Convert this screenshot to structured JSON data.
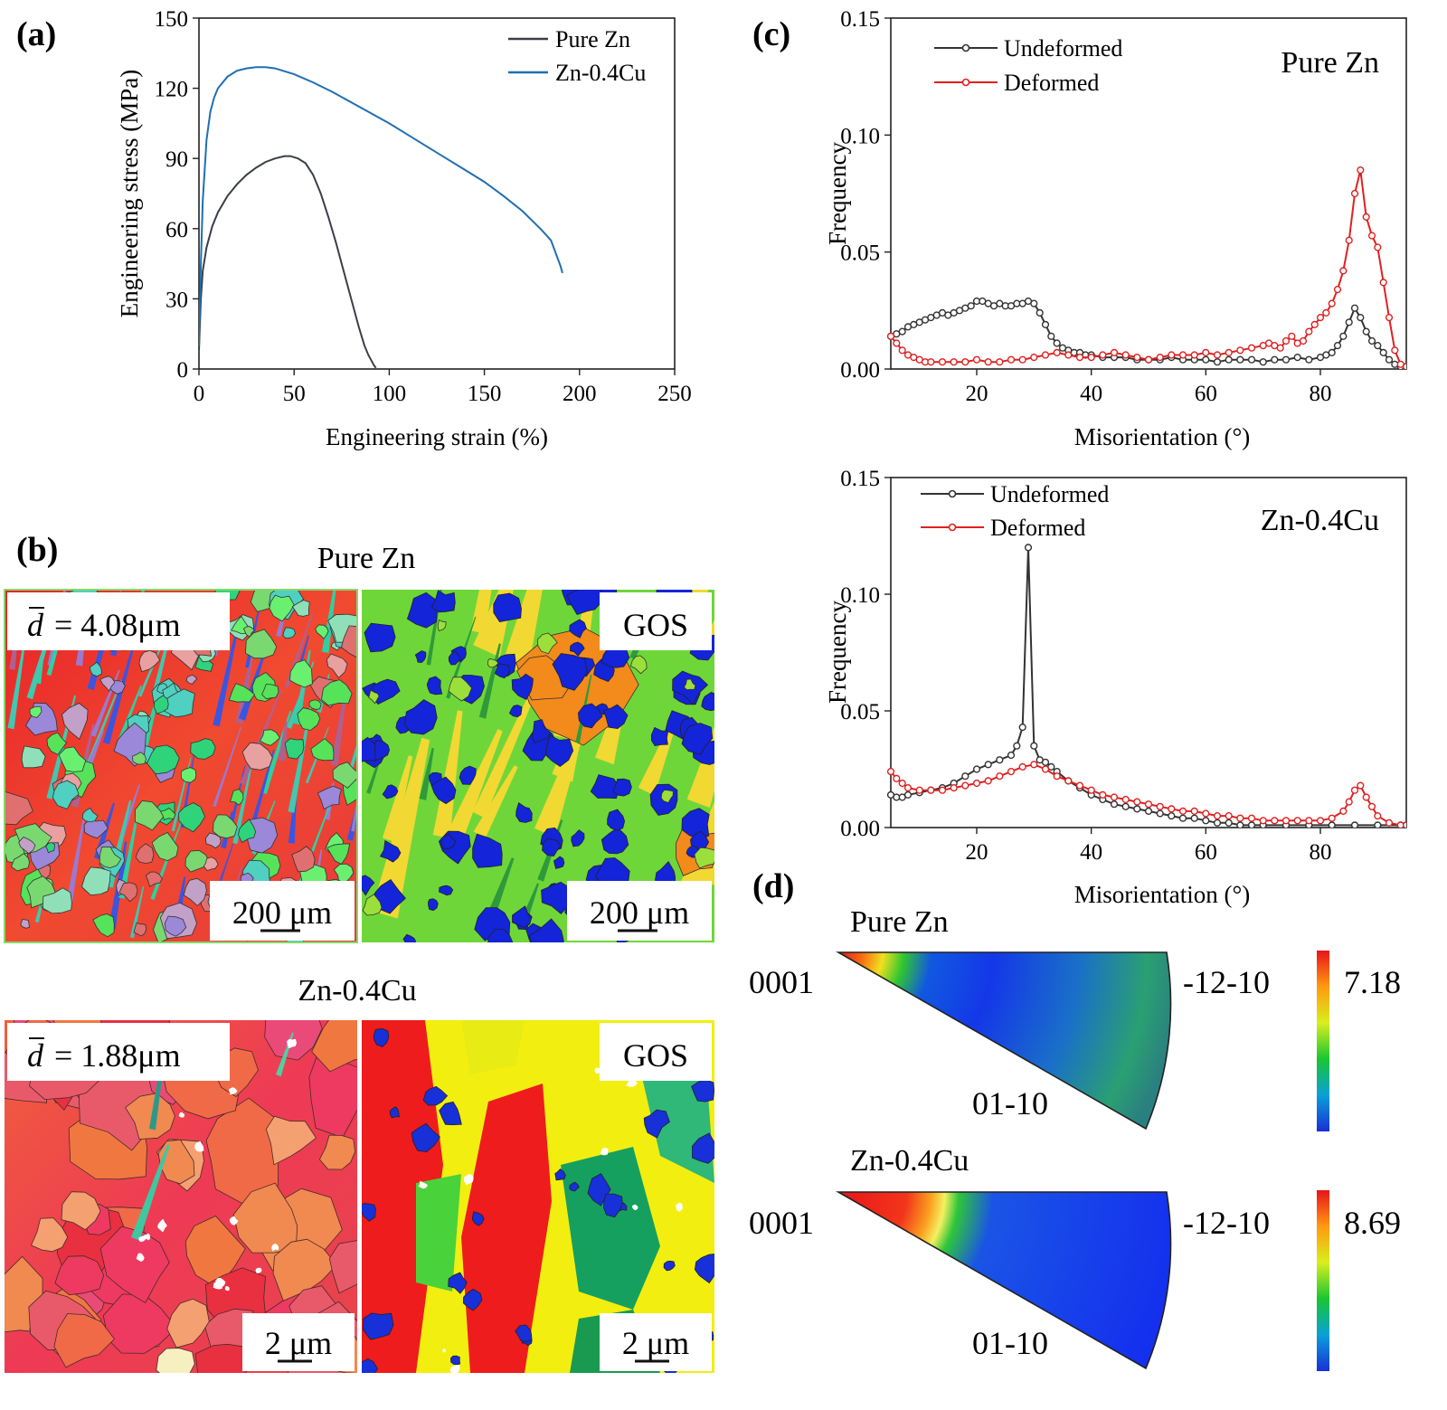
{
  "panels": {
    "a": "(a)",
    "b": "(b)",
    "c": "(c)",
    "d": "(d)"
  },
  "colors": {
    "pure_zn": "#3a3f46",
    "zn04cu": "#1f6fb2",
    "undeformed": "#333333",
    "deformed": "#e02020"
  },
  "chart_data": [
    {
      "id": "stress_strain",
      "type": "line",
      "xlabel": "Engineering strain (%)",
      "ylabel": "Engineering stress (MPa)",
      "xlim": [
        0,
        250
      ],
      "ylim": [
        0,
        150
      ],
      "xticks": [
        "0",
        "50",
        "100",
        "150",
        "200",
        "250"
      ],
      "yticks": [
        "0",
        "30",
        "60",
        "90",
        "120",
        "150"
      ],
      "legend_position": "top-right",
      "series": [
        {
          "name": "Pure Zn",
          "x": [
            0,
            1,
            2,
            4,
            7,
            10,
            15,
            20,
            25,
            30,
            35,
            40,
            45,
            48,
            52,
            56,
            60,
            64,
            68,
            72,
            76,
            80,
            84,
            87,
            89,
            91,
            92,
            93
          ],
          "y": [
            8,
            30,
            42,
            52,
            61,
            67,
            74,
            79,
            83,
            86,
            88.5,
            90,
            91,
            91,
            90,
            88,
            83,
            75,
            65,
            54,
            42,
            30,
            18,
            10,
            6,
            3,
            1.5,
            0.5
          ]
        },
        {
          "name": "Zn-0.4Cu",
          "x": [
            0,
            1,
            2,
            4,
            6,
            8,
            10,
            15,
            20,
            25,
            30,
            35,
            40,
            50,
            60,
            70,
            80,
            90,
            100,
            110,
            120,
            130,
            140,
            150,
            160,
            170,
            180,
            185,
            190,
            191
          ],
          "y": [
            10,
            45,
            72,
            98,
            110,
            116,
            120,
            125,
            127.5,
            128.5,
            129,
            129,
            128.5,
            126,
            122.5,
            118.5,
            114,
            109.5,
            105,
            100,
            95,
            90,
            85,
            80,
            74,
            67.5,
            59.5,
            55,
            44,
            41
          ]
        }
      ]
    },
    {
      "id": "misorientation_pure_zn",
      "type": "line",
      "title": "Pure Zn",
      "xlabel": "Misorientation (°)",
      "ylabel": "Frequency",
      "xlim": [
        5,
        95
      ],
      "ylim": [
        0,
        0.15
      ],
      "xticks": [
        "20",
        "40",
        "60",
        "80"
      ],
      "yticks": [
        "0.00",
        "0.05",
        "0.10",
        "0.15"
      ],
      "legend_position": "top-left",
      "series": [
        {
          "name": "Undeformed",
          "x": [
            5,
            6,
            7,
            8,
            9,
            10,
            11,
            12,
            13,
            14,
            15,
            16,
            17,
            18,
            19,
            20,
            21,
            22,
            23,
            24,
            25,
            26,
            27,
            28,
            29,
            30,
            31,
            32,
            33,
            34,
            35,
            36,
            37,
            38,
            39,
            40,
            42,
            44,
            46,
            48,
            50,
            52,
            54,
            56,
            58,
            60,
            62,
            64,
            66,
            68,
            70,
            72,
            74,
            76,
            78,
            80,
            81,
            82,
            83,
            84,
            85,
            86,
            87,
            88,
            89,
            90,
            91,
            92,
            93,
            94,
            95
          ],
          "y": [
            0.014,
            0.015,
            0.016,
            0.018,
            0.019,
            0.02,
            0.021,
            0.022,
            0.023,
            0.024,
            0.023,
            0.024,
            0.025,
            0.026,
            0.027,
            0.029,
            0.029,
            0.028,
            0.027,
            0.028,
            0.027,
            0.027,
            0.028,
            0.028,
            0.029,
            0.028,
            0.024,
            0.019,
            0.014,
            0.011,
            0.009,
            0.008,
            0.007,
            0.007,
            0.006,
            0.006,
            0.005,
            0.005,
            0.005,
            0.004,
            0.004,
            0.004,
            0.005,
            0.004,
            0.004,
            0.004,
            0.003,
            0.004,
            0.004,
            0.004,
            0.003,
            0.004,
            0.004,
            0.005,
            0.004,
            0.005,
            0.006,
            0.007,
            0.01,
            0.014,
            0.02,
            0.026,
            0.022,
            0.016,
            0.012,
            0.01,
            0.007,
            0.004,
            0.002,
            0.001,
            0.001
          ]
        },
        {
          "name": "Deformed",
          "x": [
            5,
            6,
            7,
            8,
            9,
            10,
            11,
            12,
            14,
            16,
            18,
            20,
            22,
            24,
            26,
            28,
            30,
            32,
            34,
            36,
            38,
            40,
            42,
            44,
            46,
            48,
            50,
            52,
            54,
            56,
            58,
            60,
            62,
            64,
            66,
            68,
            70,
            71,
            72,
            73,
            74,
            75,
            76,
            77,
            78,
            79,
            80,
            81,
            82,
            83,
            84,
            85,
            86,
            87,
            88,
            89,
            90,
            91,
            92,
            93,
            94,
            95
          ],
          "y": [
            0.014,
            0.011,
            0.008,
            0.006,
            0.005,
            0.004,
            0.003,
            0.003,
            0.003,
            0.003,
            0.003,
            0.004,
            0.003,
            0.003,
            0.004,
            0.004,
            0.005,
            0.006,
            0.007,
            0.006,
            0.005,
            0.005,
            0.006,
            0.007,
            0.006,
            0.005,
            0.004,
            0.005,
            0.006,
            0.006,
            0.006,
            0.007,
            0.006,
            0.007,
            0.008,
            0.009,
            0.01,
            0.011,
            0.01,
            0.009,
            0.012,
            0.014,
            0.011,
            0.012,
            0.016,
            0.019,
            0.022,
            0.024,
            0.028,
            0.034,
            0.042,
            0.055,
            0.075,
            0.085,
            0.065,
            0.057,
            0.052,
            0.037,
            0.022,
            0.008,
            0.002,
            0.001
          ]
        }
      ]
    },
    {
      "id": "misorientation_zn04cu",
      "type": "line",
      "title": "Zn-0.4Cu",
      "xlabel": "Misorientation (°)",
      "ylabel": "Frequency",
      "xlim": [
        5,
        95
      ],
      "ylim": [
        0,
        0.15
      ],
      "xticks": [
        "20",
        "40",
        "60",
        "80"
      ],
      "yticks": [
        "0.00",
        "0.05",
        "0.10",
        "0.15"
      ],
      "legend_position": "top-left",
      "series": [
        {
          "name": "Undeformed",
          "x": [
            5,
            6,
            7,
            8,
            10,
            12,
            14,
            16,
            18,
            20,
            22,
            24,
            26,
            27,
            28,
            29,
            30,
            31,
            32,
            33,
            34,
            36,
            38,
            40,
            42,
            44,
            46,
            48,
            50,
            52,
            54,
            56,
            58,
            60,
            62,
            64,
            66,
            68,
            70,
            74,
            78,
            82,
            86,
            90,
            94,
            95
          ],
          "y": [
            0.014,
            0.013,
            0.013,
            0.014,
            0.015,
            0.016,
            0.017,
            0.019,
            0.022,
            0.025,
            0.027,
            0.029,
            0.031,
            0.035,
            0.043,
            0.12,
            0.035,
            0.029,
            0.028,
            0.026,
            0.024,
            0.02,
            0.017,
            0.014,
            0.012,
            0.01,
            0.009,
            0.008,
            0.007,
            0.006,
            0.005,
            0.004,
            0.004,
            0.003,
            0.002,
            0.002,
            0.001,
            0.001,
            0.001,
            0.001,
            0.001,
            0.001,
            0.001,
            0.001,
            0.001,
            0.001
          ]
        },
        {
          "name": "Deformed",
          "x": [
            5,
            6,
            7,
            8,
            10,
            12,
            14,
            16,
            18,
            20,
            22,
            24,
            26,
            28,
            30,
            32,
            34,
            36,
            38,
            40,
            42,
            44,
            46,
            48,
            50,
            52,
            54,
            56,
            58,
            60,
            62,
            64,
            66,
            68,
            70,
            72,
            74,
            76,
            78,
            80,
            82,
            84,
            85,
            86,
            87,
            88,
            89,
            90,
            92,
            94,
            95
          ],
          "y": [
            0.024,
            0.021,
            0.019,
            0.017,
            0.016,
            0.016,
            0.016,
            0.017,
            0.018,
            0.019,
            0.02,
            0.022,
            0.024,
            0.026,
            0.027,
            0.025,
            0.022,
            0.02,
            0.018,
            0.016,
            0.014,
            0.013,
            0.012,
            0.011,
            0.01,
            0.009,
            0.008,
            0.007,
            0.007,
            0.006,
            0.005,
            0.005,
            0.004,
            0.004,
            0.003,
            0.003,
            0.003,
            0.003,
            0.003,
            0.003,
            0.004,
            0.007,
            0.011,
            0.016,
            0.018,
            0.013,
            0.009,
            0.005,
            0.002,
            0.001,
            0.001
          ]
        }
      ]
    }
  ],
  "panel_b": {
    "pure": {
      "title": "Pure Zn",
      "grain_size": "= 4.08μm",
      "gos_label": "GOS",
      "scale_left": "200 μm",
      "scale_right": "200 μm"
    },
    "cu": {
      "title": "Zn-0.4Cu",
      "grain_size": "= 1.88μm",
      "gos_label": "GOS",
      "scale_left": "2 μm",
      "scale_right": "2 μm"
    }
  },
  "panel_d": {
    "pure": {
      "title": "Pure Zn",
      "left": "0001",
      "right": "-12-10",
      "bottom": "01-10",
      "max": "7.18"
    },
    "cu": {
      "title": "Zn-0.4Cu",
      "left": "0001",
      "right": "-12-10",
      "bottom": "01-10",
      "max": "8.69"
    }
  }
}
